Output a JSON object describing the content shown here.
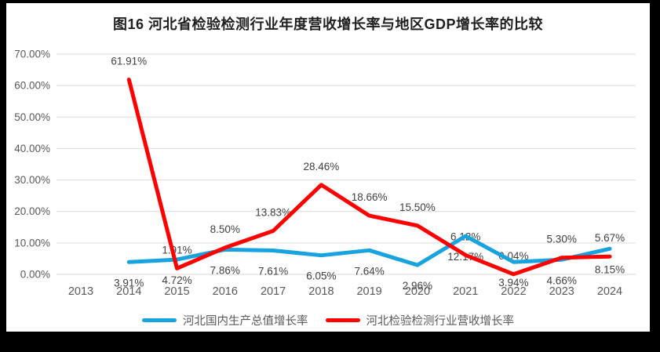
{
  "title": "图16 河北省检验检测行业年度营收增长率与地区GDP增长率的比较",
  "chart_data": {
    "type": "line",
    "title": "图16 河北省检验检测行业年度营收增长率与地区GDP增长率的比较",
    "categories": [
      "2013",
      "2014",
      "2015",
      "2016",
      "2017",
      "2018",
      "2019",
      "2020",
      "2021",
      "2022",
      "2023",
      "2024"
    ],
    "series": [
      {
        "name": "河北国内生产总值增长率",
        "color": "#17A3E0",
        "label_position": "below",
        "values": [
          null,
          3.91,
          4.72,
          7.86,
          7.61,
          6.05,
          7.64,
          2.96,
          12.17,
          3.94,
          4.66,
          8.15
        ],
        "labels": [
          "",
          "3.91%",
          "4.72%",
          "7.86%",
          "7.61%",
          "6.05%",
          "7.64%",
          "2.96%",
          "12.17%",
          "3.94%",
          "4.66%",
          "8.15%"
        ]
      },
      {
        "name": "河北检验检测行业营收增长率",
        "color": "#FE0000",
        "label_position": "above",
        "values": [
          null,
          61.91,
          1.91,
          8.5,
          13.83,
          28.46,
          18.66,
          15.5,
          6.12,
          0.04,
          5.3,
          5.67
        ],
        "labels": [
          "",
          "61.91%",
          "1.91%",
          "8.50%",
          "13.83%",
          "28.46%",
          "18.66%",
          "15.50%",
          "6.12%",
          "0.04%",
          "5.30%",
          "5.67%"
        ]
      }
    ],
    "y_axis": {
      "min": 0,
      "max": 70,
      "step": 10,
      "tick_labels": [
        "0.00%",
        "10.00%",
        "20.00%",
        "30.00%",
        "40.00%",
        "50.00%",
        "60.00%",
        "70.00%"
      ]
    },
    "grid": true,
    "legend_position": "bottom",
    "xlabel": "",
    "ylabel": ""
  },
  "colors": {
    "frame_background": "#000000",
    "panel_background": "#FFFFFF",
    "gridline": "#D9D9D9",
    "axis_label": "#595959",
    "data_label": "#3F3F3F",
    "title_text": "#1F1F1F"
  }
}
